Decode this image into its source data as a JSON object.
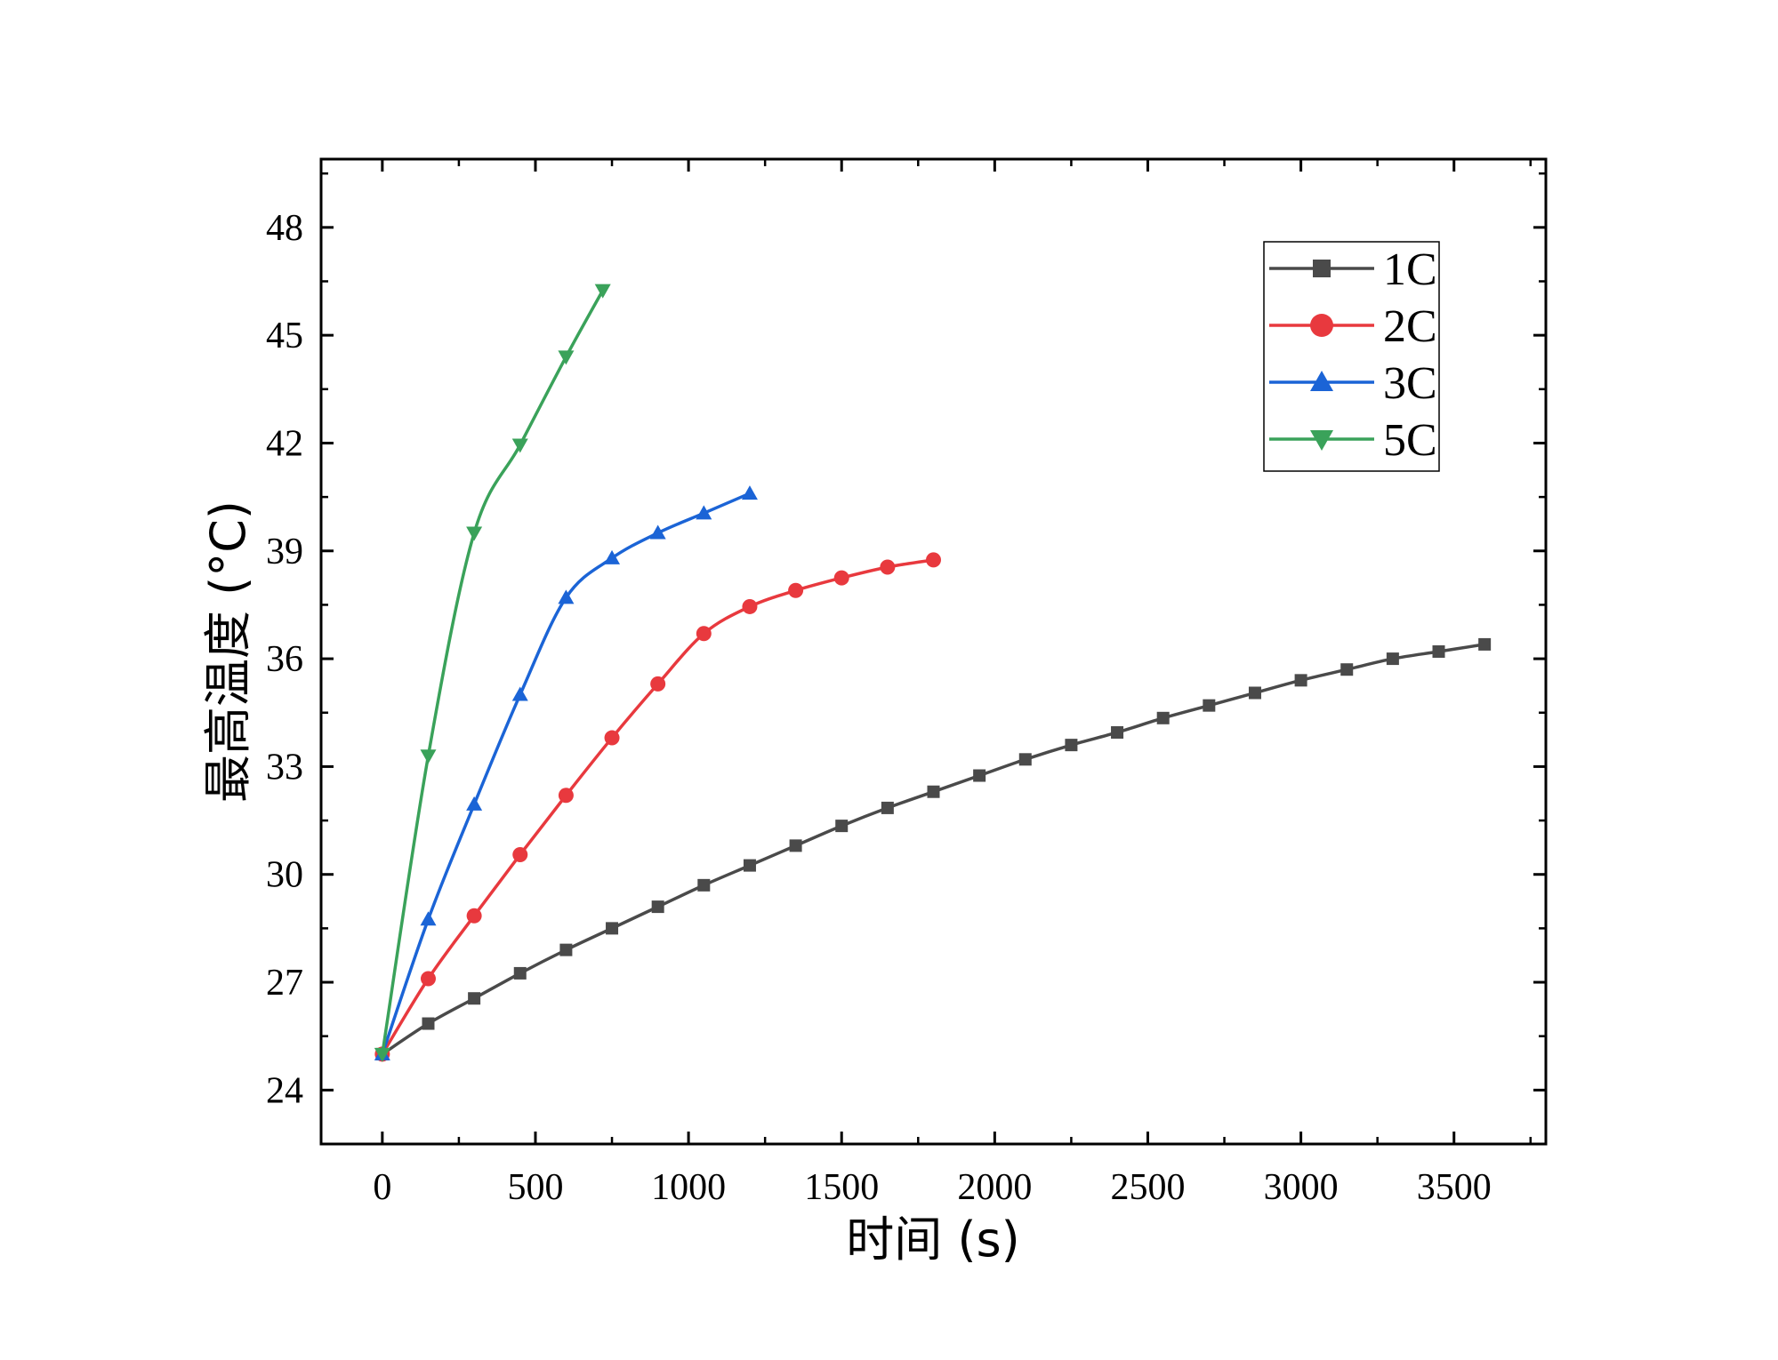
{
  "chart_data": {
    "type": "line",
    "title": "",
    "xlabel": "时间 (s)",
    "ylabel": "最高温度 (°C)",
    "xlim": [
      -200,
      3800
    ],
    "ylim": [
      22.5,
      49.9
    ],
    "xticks": [
      0,
      500,
      1000,
      1500,
      2000,
      2500,
      3000,
      3500
    ],
    "yticks": [
      24,
      27,
      30,
      33,
      36,
      39,
      42,
      45,
      48
    ],
    "legend_position": "top-right",
    "grid": false,
    "series": [
      {
        "name": "1C",
        "color": "#4a4a4a",
        "marker": "square",
        "x": [
          0,
          150,
          300,
          450,
          600,
          750,
          900,
          1050,
          1200,
          1350,
          1500,
          1650,
          1800,
          1950,
          2100,
          2250,
          2400,
          2550,
          2700,
          2850,
          3000,
          3150,
          3300,
          3450,
          3600
        ],
        "y": [
          25.0,
          25.85,
          26.55,
          27.25,
          27.9,
          28.5,
          29.1,
          29.7,
          30.25,
          30.8,
          31.35,
          31.85,
          32.3,
          32.75,
          33.2,
          33.6,
          33.95,
          34.35,
          34.7,
          35.05,
          35.4,
          35.7,
          36.0,
          36.2,
          36.4
        ]
      },
      {
        "name": "2C",
        "color": "#e8393e",
        "marker": "circle",
        "x": [
          0,
          150,
          300,
          450,
          600,
          750,
          900,
          1050,
          1200,
          1350,
          1500,
          1650,
          1800
        ],
        "y": [
          25.0,
          27.1,
          28.85,
          30.55,
          32.2,
          33.8,
          35.3,
          36.7,
          37.45,
          37.9,
          38.25,
          38.55,
          38.75
        ]
      },
      {
        "name": "3C",
        "color": "#1b64d6",
        "marker": "triangle-up",
        "x": [
          0,
          150,
          300,
          450,
          600,
          750,
          900,
          1050,
          1200
        ],
        "y": [
          25.0,
          28.75,
          31.95,
          35.0,
          37.7,
          38.8,
          39.5,
          40.05,
          40.6
        ]
      },
      {
        "name": "5C",
        "color": "#3aa25a",
        "marker": "triangle-down",
        "x": [
          0,
          150,
          300,
          450,
          600,
          720
        ],
        "y": [
          25.0,
          33.3,
          39.5,
          41.95,
          44.4,
          46.25
        ]
      }
    ]
  }
}
